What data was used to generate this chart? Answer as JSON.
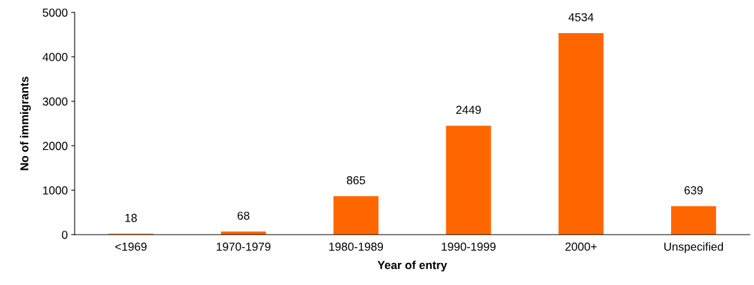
{
  "chart_data": {
    "type": "bar",
    "xlabel": "Year of entry",
    "ylabel": "No of immigrants",
    "categories": [
      "<1969",
      "1970-1979",
      "1980-1989",
      "1990-1999",
      "2000+",
      "Unspecified"
    ],
    "values": [
      18,
      68,
      865,
      2449,
      4534,
      639
    ],
    "color": "#ff6600",
    "ylim": [
      0,
      5000
    ],
    "yticks": [
      0,
      1000,
      2000,
      3000,
      4000,
      5000
    ],
    "grid": false,
    "data_labels": true
  }
}
